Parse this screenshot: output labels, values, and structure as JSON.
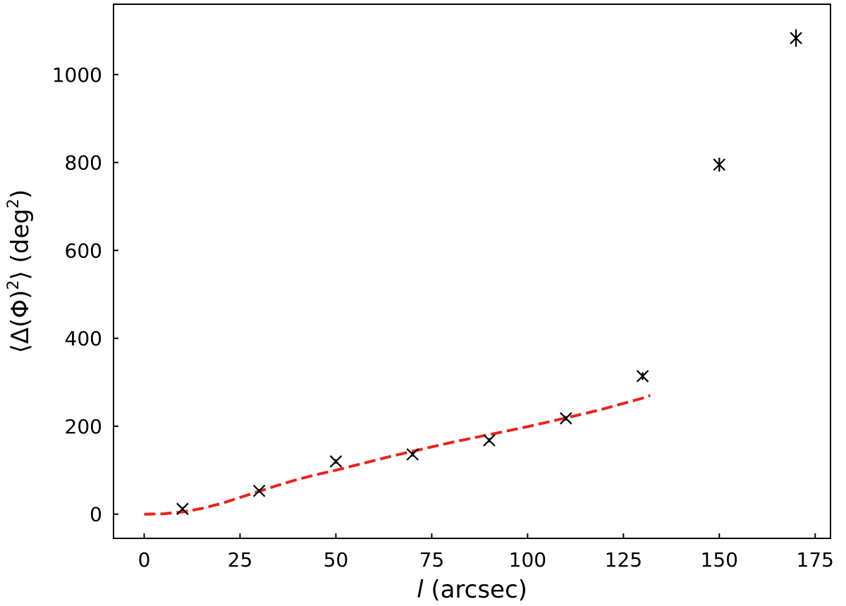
{
  "chart_data": {
    "type": "scatter",
    "xlabel": {
      "variable": "l",
      "unit": " (arcsec)"
    },
    "ylabel": {
      "parts": [
        "⟨Δ(Φ)",
        "2",
        "⟩ (deg",
        "2",
        ")"
      ]
    },
    "xlim": [
      -8,
      179
    ],
    "ylim": [
      -55,
      1160
    ],
    "x_ticks": [
      0,
      25,
      50,
      75,
      100,
      125,
      150,
      175
    ],
    "y_ticks": [
      0,
      200,
      400,
      600,
      800,
      1000
    ],
    "tick_direction": "in",
    "grid": false,
    "legend": "none",
    "series": [
      {
        "kind": "points",
        "marker": "x",
        "color": "#000000",
        "x": [
          10,
          30,
          50,
          70,
          90,
          110,
          130,
          150,
          170
        ],
        "y": [
          12,
          53,
          120,
          136,
          168,
          218,
          314,
          795,
          1083
        ],
        "yerr": [
          4,
          4,
          5,
          5,
          5,
          5,
          9,
          16,
          20
        ]
      },
      {
        "kind": "fit-line",
        "style": "dashed",
        "color": "#e8231c",
        "x": [
          0,
          5,
          10,
          15,
          20,
          25,
          30,
          35,
          40,
          45,
          50,
          55,
          60,
          65,
          70,
          75,
          80,
          85,
          90,
          95,
          100,
          105,
          110,
          115,
          120,
          125,
          130,
          132
        ],
        "y": [
          0,
          1,
          5,
          13,
          24,
          38,
          52,
          66,
          79,
          90,
          100,
          111,
          122,
          133,
          143,
          153,
          163,
          172,
          181,
          190,
          199,
          209,
          219,
          229,
          240,
          252,
          264,
          270
        ]
      }
    ]
  }
}
